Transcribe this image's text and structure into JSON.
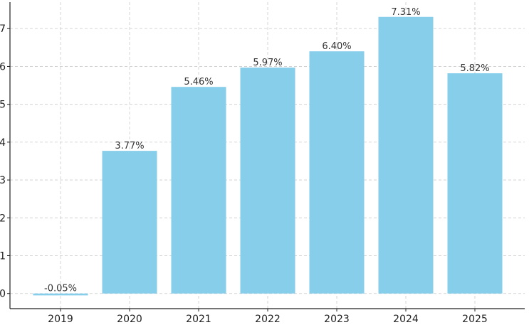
{
  "chart_data": {
    "type": "bar",
    "categories": [
      "2019",
      "2020",
      "2021",
      "2022",
      "2023",
      "2024",
      "2025"
    ],
    "values": [
      -0.05,
      3.77,
      5.46,
      5.97,
      6.4,
      7.31,
      5.82
    ],
    "data_labels": [
      "-0.05%",
      "3.77%",
      "5.46%",
      "5.97%",
      "6.40%",
      "7.31%",
      "5.82%"
    ],
    "yticks": [
      0,
      1,
      2,
      3,
      4,
      5,
      6,
      7
    ],
    "ytick_labels": [
      "0",
      "1",
      "2",
      "3",
      "4",
      "5",
      "6",
      "7"
    ],
    "ylim": [
      -0.4,
      7.7
    ],
    "title": "",
    "xlabel": "",
    "ylabel": "",
    "grid": true,
    "bar_color": "#87CEEB"
  }
}
